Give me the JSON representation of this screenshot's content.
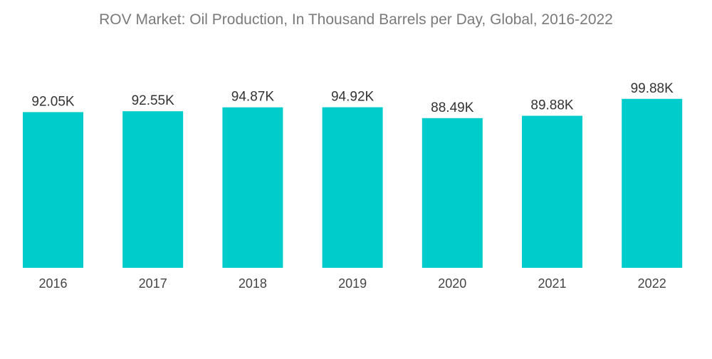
{
  "chart_data": {
    "type": "bar",
    "title": "ROV Market: Oil Production, In Thousand Barrels per Day, Global, 2016-2022",
    "categories": [
      "2016",
      "2017",
      "2018",
      "2019",
      "2020",
      "2021",
      "2022"
    ],
    "values": [
      92.05,
      92.55,
      94.87,
      94.92,
      88.49,
      89.88,
      99.88
    ],
    "data_labels": [
      "92.05K",
      "92.55K",
      "94.87K",
      "94.92K",
      "88.49K",
      "89.88K",
      "99.88K"
    ],
    "xlabel": "",
    "ylabel": "",
    "ylim": [
      0,
      100
    ],
    "grid": false,
    "legend": "none",
    "bar_color": "#00cccc"
  }
}
